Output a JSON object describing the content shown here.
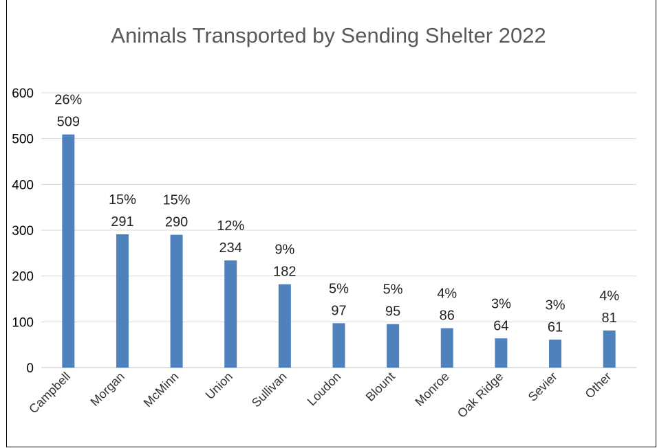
{
  "chart_data": {
    "type": "bar",
    "title": "Animals Transported by Sending Shelter 2022",
    "xlabel": "",
    "ylabel": "",
    "ylim": [
      0,
      600
    ],
    "yticks": [
      0,
      100,
      200,
      300,
      400,
      500,
      600
    ],
    "grid": true,
    "categories": [
      "Campbell",
      "Morgan",
      "McMinn",
      "Union",
      "Sullivan",
      "Loudon",
      "Blount",
      "Monroe",
      "Oak Ridge",
      "Sevier",
      "Other"
    ],
    "values": [
      509,
      291,
      290,
      234,
      182,
      97,
      95,
      86,
      64,
      61,
      81
    ],
    "percent_labels": [
      "26%",
      "15%",
      "15%",
      "12%",
      "9%",
      "5%",
      "5%",
      "4%",
      "3%",
      "3%",
      "4%"
    ],
    "bar_color": "#4f81bd",
    "gridline_color": "#d9d9d9"
  }
}
